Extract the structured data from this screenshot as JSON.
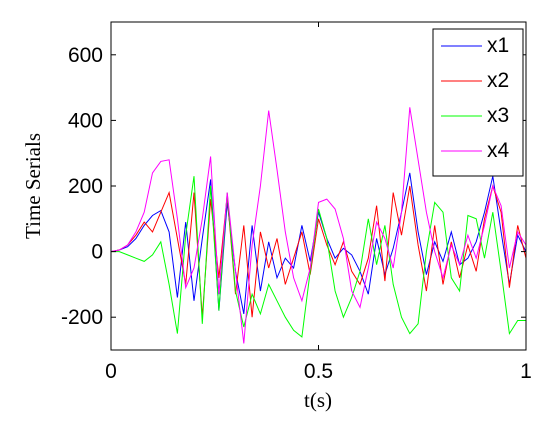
{
  "chart_data": {
    "type": "line",
    "title": "",
    "xlabel": "t(s)",
    "ylabel": "Time Serials",
    "xlim": [
      0,
      1
    ],
    "ylim": [
      -300,
      700
    ],
    "xticks": [
      0,
      0.5,
      1
    ],
    "xtick_labels": [
      "0",
      "0.5",
      "1"
    ],
    "yticks": [
      -200,
      0,
      200,
      400,
      600
    ],
    "ytick_labels": [
      "-200",
      "0",
      "200",
      "400",
      "600"
    ],
    "grid": false,
    "legend_position": "top-right",
    "series": [
      {
        "name": "x1",
        "color": "#0000ff",
        "x": [
          0,
          0.02,
          0.04,
          0.06,
          0.08,
          0.1,
          0.12,
          0.14,
          0.16,
          0.18,
          0.2,
          0.22,
          0.24,
          0.26,
          0.28,
          0.3,
          0.32,
          0.34,
          0.36,
          0.38,
          0.4,
          0.42,
          0.44,
          0.46,
          0.48,
          0.5,
          0.52,
          0.54,
          0.56,
          0.58,
          0.6,
          0.62,
          0.64,
          0.66,
          0.68,
          0.7,
          0.72,
          0.74,
          0.76,
          0.78,
          0.8,
          0.82,
          0.84,
          0.86,
          0.88,
          0.9,
          0.92,
          0.94,
          0.96,
          0.98,
          1.0
        ],
        "y": [
          0,
          5,
          15,
          40,
          80,
          110,
          125,
          60,
          -140,
          90,
          -150,
          40,
          220,
          -180,
          150,
          -60,
          -190,
          80,
          -120,
          30,
          -80,
          -20,
          -50,
          80,
          -30,
          120,
          40,
          -20,
          10,
          -10,
          -60,
          -130,
          40,
          -70,
          10,
          120,
          240,
          60,
          -70,
          30,
          -30,
          60,
          -40,
          -20,
          30,
          120,
          230,
          60,
          -100,
          50,
          0
        ]
      },
      {
        "name": "x2",
        "color": "#ff0000",
        "x": [
          0,
          0.02,
          0.04,
          0.06,
          0.08,
          0.1,
          0.12,
          0.14,
          0.16,
          0.18,
          0.2,
          0.22,
          0.24,
          0.26,
          0.28,
          0.3,
          0.32,
          0.34,
          0.36,
          0.38,
          0.4,
          0.42,
          0.44,
          0.46,
          0.48,
          0.5,
          0.52,
          0.54,
          0.56,
          0.58,
          0.6,
          0.62,
          0.64,
          0.66,
          0.68,
          0.7,
          0.72,
          0.74,
          0.76,
          0.78,
          0.8,
          0.82,
          0.84,
          0.86,
          0.88,
          0.9,
          0.92,
          0.94,
          0.96,
          0.98,
          1.0
        ],
        "y": [
          0,
          5,
          20,
          50,
          90,
          60,
          120,
          180,
          40,
          -100,
          180,
          -200,
          160,
          -80,
          170,
          -130,
          80,
          -200,
          60,
          -50,
          40,
          -100,
          -20,
          60,
          -70,
          100,
          20,
          -40,
          30,
          -60,
          -100,
          -20,
          140,
          -90,
          180,
          50,
          200,
          20,
          -120,
          80,
          -100,
          30,
          -80,
          20,
          -60,
          100,
          200,
          120,
          -110,
          80,
          -20
        ]
      },
      {
        "name": "x3",
        "color": "#00ff00",
        "x": [
          0,
          0.02,
          0.04,
          0.06,
          0.08,
          0.1,
          0.12,
          0.14,
          0.16,
          0.18,
          0.2,
          0.22,
          0.24,
          0.26,
          0.28,
          0.3,
          0.32,
          0.34,
          0.36,
          0.38,
          0.4,
          0.42,
          0.44,
          0.46,
          0.48,
          0.5,
          0.52,
          0.54,
          0.56,
          0.58,
          0.6,
          0.62,
          0.64,
          0.66,
          0.68,
          0.7,
          0.72,
          0.74,
          0.76,
          0.78,
          0.8,
          0.82,
          0.84,
          0.86,
          0.88,
          0.9,
          0.92,
          0.94,
          0.96,
          0.98,
          1.0
        ],
        "y": [
          0,
          0,
          -10,
          -20,
          -30,
          -10,
          30,
          -100,
          -250,
          50,
          230,
          -220,
          200,
          -180,
          180,
          -120,
          -230,
          -130,
          -190,
          -100,
          -150,
          -200,
          -240,
          -260,
          -60,
          130,
          40,
          -120,
          -200,
          -140,
          -60,
          100,
          -40,
          80,
          -100,
          -200,
          -250,
          -220,
          0,
          150,
          120,
          -80,
          -120,
          110,
          100,
          -20,
          120,
          -60,
          -250,
          -210,
          -210
        ]
      },
      {
        "name": "x4",
        "color": "#ff00ff",
        "x": [
          0,
          0.02,
          0.04,
          0.06,
          0.08,
          0.1,
          0.12,
          0.14,
          0.16,
          0.18,
          0.2,
          0.22,
          0.24,
          0.26,
          0.28,
          0.3,
          0.32,
          0.34,
          0.36,
          0.38,
          0.4,
          0.42,
          0.44,
          0.46,
          0.48,
          0.5,
          0.52,
          0.54,
          0.56,
          0.58,
          0.6,
          0.62,
          0.64,
          0.66,
          0.68,
          0.7,
          0.72,
          0.74,
          0.76,
          0.78,
          0.8,
          0.82,
          0.84,
          0.86,
          0.88,
          0.9,
          0.92,
          0.94,
          0.96,
          0.98,
          1.0
        ],
        "y": [
          0,
          5,
          20,
          60,
          120,
          240,
          275,
          280,
          100,
          -110,
          -50,
          100,
          290,
          -130,
          180,
          -60,
          -280,
          20,
          200,
          430,
          250,
          60,
          -80,
          -150,
          -50,
          150,
          160,
          130,
          40,
          -120,
          -170,
          -50,
          90,
          40,
          -50,
          120,
          440,
          280,
          120,
          0,
          -80,
          20,
          -40,
          50,
          -20,
          80,
          200,
          140,
          -50,
          60,
          20
        ]
      }
    ]
  }
}
